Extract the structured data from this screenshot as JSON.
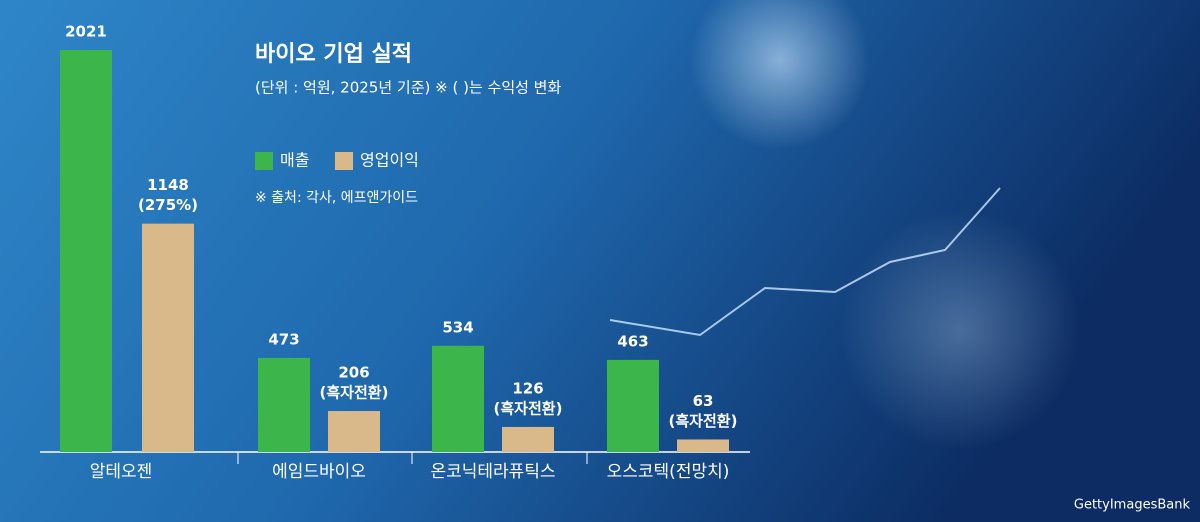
{
  "chart_data": {
    "type": "bar",
    "title": "바이오 기업 실적",
    "subtitle": "(단위 : 억원, 2025년 기준) ※ ( )는 수익성 변화",
    "source": "※ 출처: 각사, 에프앤가이드",
    "credit": "GettyImagesBank",
    "categories": [
      "알테오젠",
      "에임드바이오",
      "온코닉테라퓨틱스",
      "오스코텍(전망치)"
    ],
    "series": [
      {
        "name": "매출",
        "color": "#3cb54a",
        "values": [
          2021,
          473,
          534,
          463
        ]
      },
      {
        "name": "영업이익",
        "color": "#d9b88a",
        "values": [
          1148,
          206,
          126,
          63
        ],
        "notes": [
          "(275%)",
          "(흑자전환)",
          "(흑자전환)",
          "(흑자전환)"
        ]
      }
    ]
  }
}
